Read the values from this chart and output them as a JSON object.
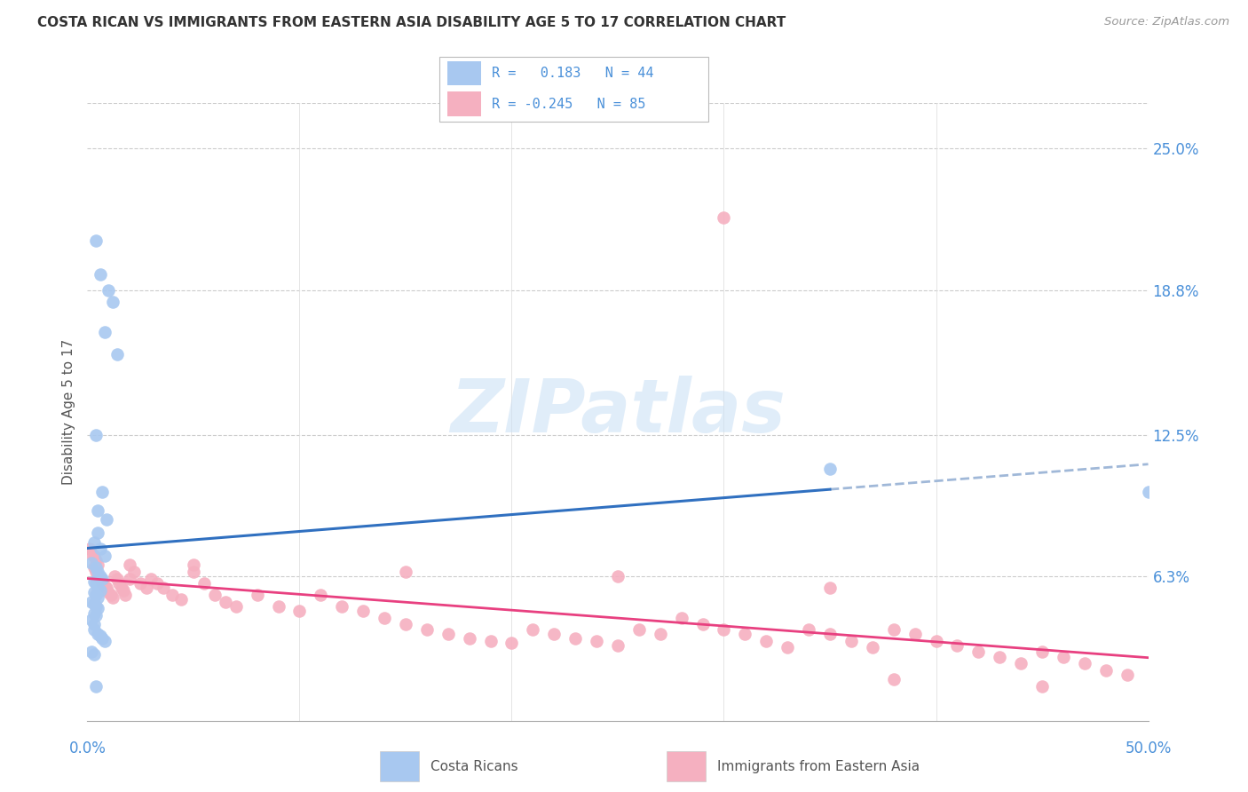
{
  "title": "COSTA RICAN VS IMMIGRANTS FROM EASTERN ASIA DISABILITY AGE 5 TO 17 CORRELATION CHART",
  "source_text": "Source: ZipAtlas.com",
  "ylabel": "Disability Age 5 to 17",
  "ytick_labels": [
    "25.0%",
    "18.8%",
    "12.5%",
    "6.3%"
  ],
  "ytick_values": [
    0.25,
    0.188,
    0.125,
    0.063
  ],
  "xlim": [
    0.0,
    0.5
  ],
  "ylim": [
    0.0,
    0.27
  ],
  "legend1_label1": "R =   0.183   N = 44",
  "legend1_label2": "R = -0.245   N = 85",
  "legend2_label1": "Costa Ricans",
  "legend2_label2": "Immigrants from Eastern Asia",
  "costa_rican_color": "#a8c8f0",
  "immigrant_color": "#f5b0c0",
  "trendline_blue_color": "#3070c0",
  "trendline_pink_color": "#e84080",
  "trendline_dashed_color": "#a0b8d8",
  "watermark": "ZIPatlas",
  "cr_R": 0.183,
  "im_R": -0.245,
  "costa_rican_x": [
    0.004,
    0.006,
    0.01,
    0.012,
    0.008,
    0.014,
    0.004,
    0.007,
    0.005,
    0.009,
    0.005,
    0.003,
    0.006,
    0.008,
    0.002,
    0.004,
    0.005,
    0.006,
    0.007,
    0.003,
    0.004,
    0.005,
    0.006,
    0.003,
    0.004,
    0.005,
    0.002,
    0.003,
    0.004,
    0.005,
    0.003,
    0.004,
    0.002,
    0.003,
    0.35,
    0.003,
    0.005,
    0.006,
    0.007,
    0.008,
    0.002,
    0.003,
    0.5,
    0.004
  ],
  "costa_rican_y": [
    0.21,
    0.195,
    0.188,
    0.183,
    0.17,
    0.16,
    0.125,
    0.1,
    0.092,
    0.088,
    0.082,
    0.078,
    0.075,
    0.072,
    0.069,
    0.067,
    0.065,
    0.063,
    0.062,
    0.061,
    0.06,
    0.058,
    0.057,
    0.056,
    0.055,
    0.054,
    0.052,
    0.051,
    0.05,
    0.049,
    0.047,
    0.046,
    0.044,
    0.042,
    0.11,
    0.04,
    0.038,
    0.037,
    0.036,
    0.035,
    0.03,
    0.029,
    0.1,
    0.015
  ],
  "immigrant_x": [
    0.001,
    0.002,
    0.003,
    0.004,
    0.005,
    0.003,
    0.004,
    0.005,
    0.006,
    0.007,
    0.008,
    0.009,
    0.01,
    0.011,
    0.012,
    0.013,
    0.014,
    0.015,
    0.016,
    0.017,
    0.018,
    0.02,
    0.022,
    0.025,
    0.028,
    0.03,
    0.033,
    0.036,
    0.04,
    0.044,
    0.05,
    0.055,
    0.06,
    0.065,
    0.07,
    0.08,
    0.09,
    0.1,
    0.11,
    0.12,
    0.13,
    0.14,
    0.15,
    0.16,
    0.17,
    0.18,
    0.19,
    0.2,
    0.21,
    0.22,
    0.23,
    0.24,
    0.25,
    0.26,
    0.27,
    0.28,
    0.29,
    0.3,
    0.31,
    0.32,
    0.33,
    0.34,
    0.35,
    0.36,
    0.37,
    0.38,
    0.39,
    0.4,
    0.41,
    0.42,
    0.43,
    0.44,
    0.45,
    0.46,
    0.47,
    0.48,
    0.49,
    0.3,
    0.05,
    0.15,
    0.25,
    0.35,
    0.45,
    0.02,
    0.38
  ],
  "immigrant_y": [
    0.075,
    0.073,
    0.072,
    0.07,
    0.068,
    0.067,
    0.065,
    0.063,
    0.062,
    0.06,
    0.059,
    0.058,
    0.056,
    0.055,
    0.054,
    0.063,
    0.062,
    0.06,
    0.058,
    0.057,
    0.055,
    0.068,
    0.065,
    0.06,
    0.058,
    0.062,
    0.06,
    0.058,
    0.055,
    0.053,
    0.065,
    0.06,
    0.055,
    0.052,
    0.05,
    0.055,
    0.05,
    0.048,
    0.055,
    0.05,
    0.048,
    0.045,
    0.042,
    0.04,
    0.038,
    0.036,
    0.035,
    0.034,
    0.04,
    0.038,
    0.036,
    0.035,
    0.033,
    0.04,
    0.038,
    0.045,
    0.042,
    0.04,
    0.038,
    0.035,
    0.032,
    0.04,
    0.038,
    0.035,
    0.032,
    0.04,
    0.038,
    0.035,
    0.033,
    0.03,
    0.028,
    0.025,
    0.03,
    0.028,
    0.025,
    0.022,
    0.02,
    0.22,
    0.068,
    0.065,
    0.063,
    0.058,
    0.015,
    0.062,
    0.018
  ]
}
